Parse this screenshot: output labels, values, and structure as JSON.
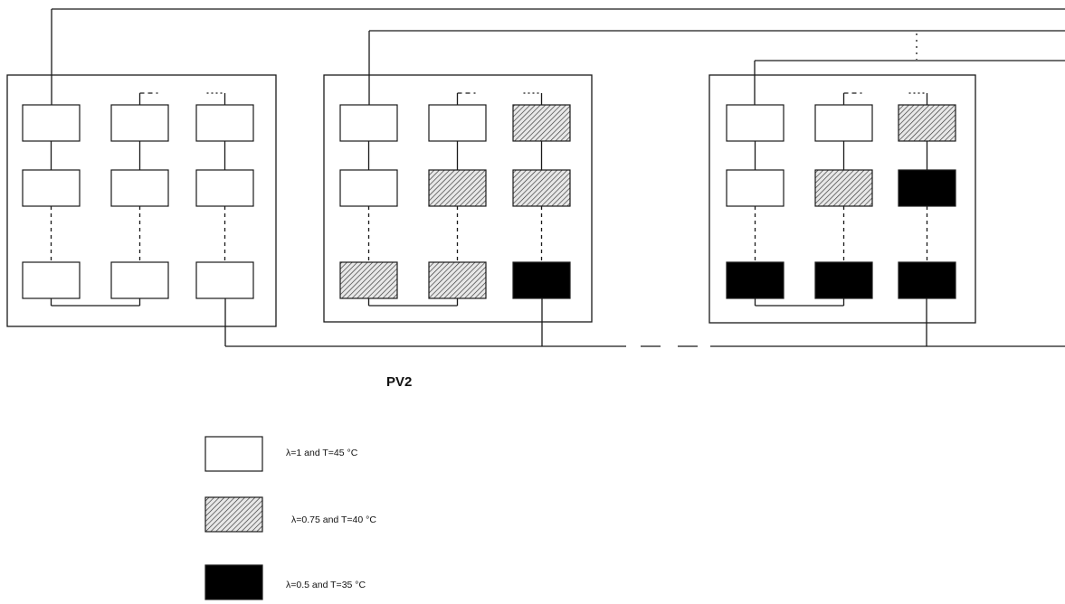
{
  "diagram": {
    "label": "PV2",
    "panels": [
      {
        "name": "panel-1",
        "cells": [
          "none",
          "none",
          "none",
          "none",
          "none",
          "none",
          "none",
          "none",
          "none"
        ]
      },
      {
        "name": "panel-2",
        "cells": [
          "none",
          "none",
          "hatched",
          "none",
          "hatched",
          "hatched",
          "hatched",
          "hatched",
          "solid"
        ]
      },
      {
        "name": "panel-3",
        "cells": [
          "none",
          "none",
          "hatched",
          "none",
          "hatched",
          "solid",
          "solid",
          "solid",
          "solid"
        ]
      }
    ]
  },
  "legend": [
    {
      "fill": "none",
      "text": "λ=1 and T=45 °C"
    },
    {
      "fill": "hatched",
      "text": "λ=0.75 and T=40 °C"
    },
    {
      "fill": "solid",
      "text": "λ=0.5 and T=35 °C"
    }
  ],
  "colors": {
    "line": "#1a1a1a",
    "solid": "#000000",
    "hatch": "#555555",
    "background": "#ffffff"
  }
}
